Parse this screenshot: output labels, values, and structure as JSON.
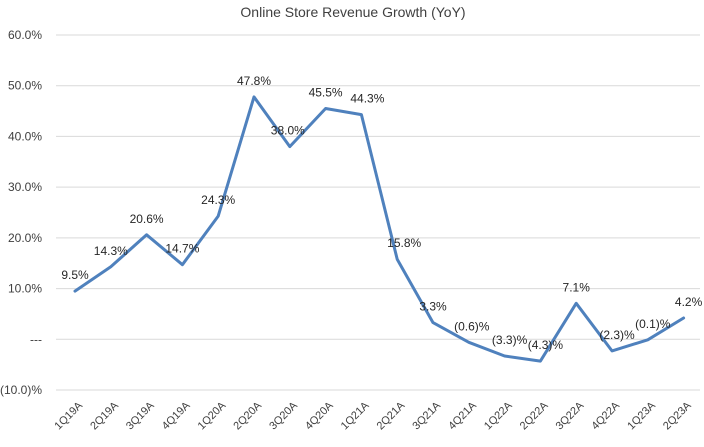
{
  "chart_data": {
    "type": "line",
    "title": "Online Store Revenue Growth (YoY)",
    "xlabel": "",
    "ylabel": "",
    "ylim": [
      -10,
      60
    ],
    "yticks": [
      60,
      50,
      40,
      30,
      20,
      10,
      0,
      -10
    ],
    "ytick_labels": [
      "60.0%",
      "50.0%",
      "40.0%",
      "30.0%",
      "20.0%",
      "10.0%",
      "---",
      "(10.0)%"
    ],
    "grid": true,
    "categories": [
      "1Q19A",
      "2Q19A",
      "3Q19A",
      "4Q19A",
      "1Q20A",
      "2Q20A",
      "3Q20A",
      "4Q20A",
      "1Q21A",
      "2Q21A",
      "3Q21A",
      "4Q21A",
      "1Q22A",
      "2Q22A",
      "3Q22A",
      "4Q22A",
      "1Q23A",
      "2Q23A"
    ],
    "series": [
      {
        "name": "Online Store Revenue Growth",
        "color": "#4f81bd",
        "values": [
          9.5,
          14.3,
          20.6,
          14.7,
          24.3,
          47.8,
          38.0,
          45.5,
          44.3,
          15.8,
          3.3,
          -0.6,
          -3.3,
          -4.3,
          7.1,
          -2.3,
          -0.1,
          4.2
        ],
        "labels": [
          "9.5%",
          "14.3%",
          "20.6%",
          "14.7%",
          "24.3%",
          "47.8%",
          "38.0%",
          "45.5%",
          "44.3%",
          "15.8%",
          "3.3%",
          "(0.6)%",
          "(3.3)%",
          "(4.3)%",
          "7.1%",
          "(2.3)%",
          "(0.1)%",
          "4.2%"
        ]
      }
    ]
  }
}
